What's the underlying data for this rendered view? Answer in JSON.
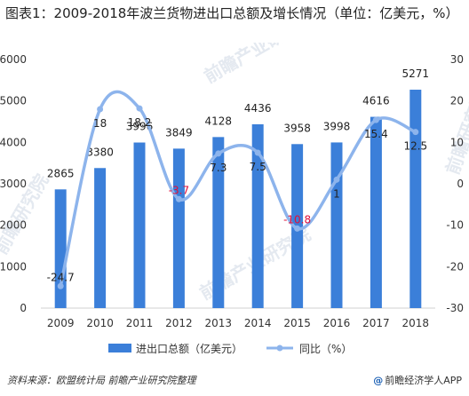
{
  "title": "图表1：2009-2018年波兰货物进出口总额及增长情况（单位：亿美元，%）",
  "source": "资料来源：欧盟统计局 前瞻产业研究院整理",
  "brand": "前瞻经济学人APP",
  "brand_icon": "@",
  "chart_data": {
    "type": "bar",
    "categories": [
      "2009",
      "2010",
      "2011",
      "2012",
      "2013",
      "2014",
      "2015",
      "2016",
      "2017",
      "2018"
    ],
    "series": [
      {
        "name": "进出口总额（亿美元）",
        "type": "bar",
        "axis": "left",
        "values": [
          2865,
          3380,
          3996,
          3849,
          4128,
          4436,
          3958,
          3998,
          4616,
          5271
        ],
        "labels": [
          "2865",
          "3380",
          "3996",
          "3849",
          "4128",
          "4436",
          "3958",
          "3998",
          "4616",
          "5271"
        ],
        "color": "#3b7fd9"
      },
      {
        "name": "同比（%）",
        "type": "line",
        "axis": "right",
        "values": [
          -24.7,
          18,
          18.2,
          -3.7,
          7.3,
          7.5,
          -10.8,
          1,
          15.4,
          12.5
        ],
        "labels": [
          "-24.7",
          "18",
          "18.2",
          "-3.7",
          "7.3",
          "7.5",
          "-10.8",
          "1",
          "15.4",
          "12.5"
        ],
        "color": "#8db4ec",
        "negative_label_color": "#e0103a"
      }
    ],
    "y_left": {
      "min": 0,
      "max": 6000,
      "ticks": [
        0,
        1000,
        2000,
        3000,
        4000,
        5000,
        6000
      ]
    },
    "y_right": {
      "min": -30,
      "max": 30,
      "ticks": [
        -30,
        -20,
        -10,
        0,
        10,
        20,
        30
      ]
    },
    "legend_placement": "bottom-center",
    "grid": false
  }
}
